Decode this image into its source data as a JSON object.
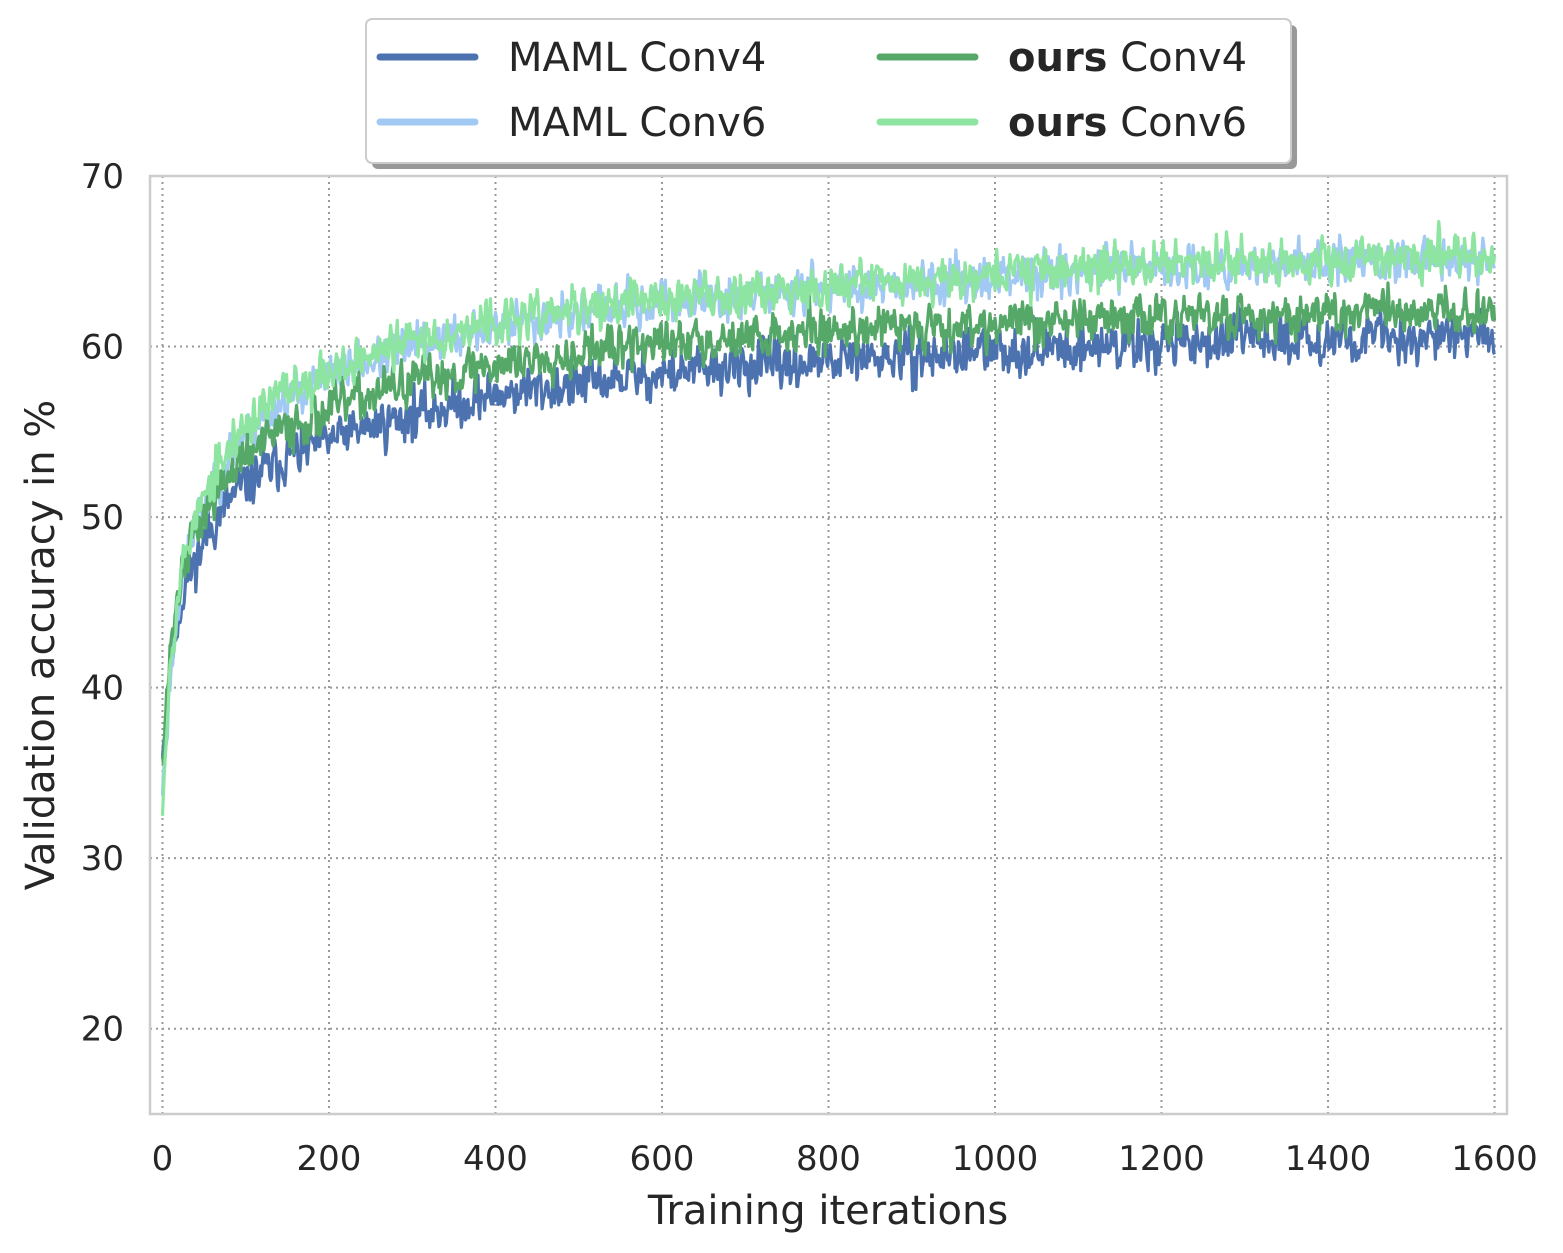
{
  "chart_data": {
    "type": "line",
    "title": "",
    "xlabel": "Training iterations",
    "ylabel": "Validation accuracy in %",
    "xlim": [
      -15,
      1615
    ],
    "ylim": [
      15,
      70
    ],
    "xticks": [
      0,
      200,
      400,
      600,
      800,
      1000,
      1200,
      1400,
      1600
    ],
    "yticks": [
      20,
      30,
      40,
      50,
      60,
      70
    ],
    "grid": true,
    "legend_position": "top-center",
    "x_range": [
      0,
      1600
    ],
    "series": [
      {
        "name_bold": "",
        "name": "MAML Conv4",
        "color": "#4c72b0",
        "noise": 1.3,
        "seed": 11,
        "x": [
          0,
          5,
          10,
          20,
          30,
          40,
          60,
          80,
          100,
          150,
          200,
          250,
          300,
          400,
          500,
          600,
          700,
          800,
          900,
          1000,
          1100,
          1200,
          1300,
          1400,
          1500,
          1600
        ],
        "y": [
          36.5,
          39,
          41.5,
          44.5,
          46.5,
          47.5,
          49.5,
          51,
          52,
          53.5,
          54.5,
          55.3,
          56,
          57.2,
          57.8,
          58.4,
          58.8,
          59.1,
          59.4,
          59.7,
          60,
          60.2,
          60.4,
          60.5,
          60.6,
          60.7
        ]
      },
      {
        "name_bold": "",
        "name": "MAML Conv6",
        "color": "#a1c9f4",
        "noise": 1.2,
        "seed": 23,
        "x": [
          0,
          5,
          10,
          20,
          30,
          40,
          60,
          80,
          100,
          150,
          200,
          250,
          300,
          400,
          500,
          600,
          700,
          800,
          900,
          1000,
          1100,
          1200,
          1300,
          1400,
          1500,
          1600
        ],
        "y": [
          34,
          37.5,
          41,
          45.5,
          48,
          49.5,
          51.5,
          53.5,
          55,
          57,
          58.3,
          59.2,
          60,
          61.2,
          62,
          62.6,
          63,
          63.4,
          63.8,
          64.1,
          64.4,
          64.6,
          64.8,
          65,
          65.1,
          65.2
        ]
      },
      {
        "name_bold": "ours",
        "name": " Conv4",
        "color": "#55a868",
        "noise": 1.25,
        "seed": 37,
        "x": [
          0,
          5,
          10,
          20,
          30,
          40,
          60,
          80,
          100,
          150,
          200,
          250,
          300,
          400,
          500,
          600,
          700,
          800,
          900,
          1000,
          1100,
          1200,
          1300,
          1400,
          1500,
          1600
        ],
        "y": [
          36.5,
          39.5,
          42.5,
          46,
          48,
          49.2,
          51,
          52.5,
          53.6,
          55.3,
          56.3,
          57.2,
          57.9,
          59,
          59.7,
          60.2,
          60.6,
          61,
          61.2,
          61.4,
          61.6,
          61.7,
          61.8,
          61.9,
          62,
          62
        ]
      },
      {
        "name_bold": "ours",
        "name": " Conv6",
        "color": "#8de5a1",
        "noise": 1.2,
        "seed": 53,
        "x": [
          0,
          5,
          10,
          20,
          30,
          40,
          60,
          80,
          100,
          150,
          200,
          250,
          300,
          400,
          500,
          600,
          700,
          800,
          900,
          1000,
          1100,
          1200,
          1300,
          1400,
          1500,
          1600
        ],
        "y": [
          33.5,
          38,
          42,
          46,
          48.5,
          50,
          52,
          54,
          55.5,
          57.5,
          58.6,
          59.5,
          60.3,
          61.4,
          62.2,
          62.8,
          63.2,
          63.6,
          64,
          64.3,
          64.6,
          64.8,
          65,
          65.2,
          65.3,
          65.4
        ]
      }
    ]
  }
}
